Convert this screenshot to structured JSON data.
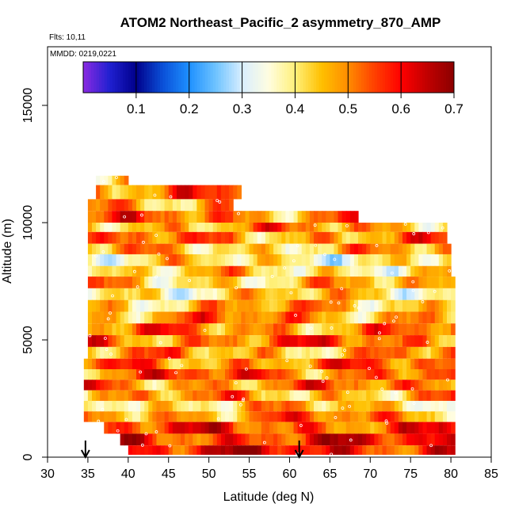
{
  "chart_data": {
    "type": "heatmap",
    "title": "ATOM2 Northeast_Pacific_2 asymmetry_870_AMP",
    "subtitle_flights": "Flts: 10,11",
    "subtitle_dates": "MMDD: 0219,0221",
    "xlabel": "Latitude (deg N)",
    "ylabel": "Altitude (m)",
    "xlim": [
      30,
      85
    ],
    "ylim": [
      0,
      17500
    ],
    "x_ticks": [
      30,
      35,
      40,
      45,
      50,
      55,
      60,
      65,
      70,
      75,
      80,
      85
    ],
    "y_ticks": [
      0,
      5000,
      10000,
      15000
    ],
    "colorbar": {
      "min": 0.0,
      "max": 0.7,
      "ticks": [
        0.1,
        0.2,
        0.3,
        0.4,
        0.5,
        0.6,
        0.7
      ],
      "colors": [
        "#8a2be2",
        "#2020d0",
        "#00008b",
        "#0a50d8",
        "#1e90ff",
        "#6ec3ff",
        "#d8eeff",
        "#fffde0",
        "#fff07a",
        "#ffc000",
        "#ff8c00",
        "#ff4000",
        "#ff0000",
        "#c00000",
        "#8b0000"
      ]
    },
    "arrows_latitude": [
      34.7,
      61.2
    ],
    "rows": [
      {
        "alt_bottom": 11600,
        "alt_top": 12000,
        "lat_start": 36.0,
        "lat_end": 40.0,
        "mean": 0.46
      },
      {
        "alt_bottom": 11000,
        "alt_top": 11600,
        "lat_start": 36.0,
        "lat_end": 54.0,
        "mean": 0.52
      },
      {
        "alt_bottom": 10500,
        "alt_top": 11000,
        "lat_start": 35.0,
        "lat_end": 53.0,
        "mean": 0.49
      },
      {
        "alt_bottom": 10000,
        "alt_top": 10500,
        "lat_start": 35.0,
        "lat_end": 68.5,
        "mean": 0.51
      },
      {
        "alt_bottom": 9600,
        "alt_top": 10000,
        "lat_start": 35.0,
        "lat_end": 79.5,
        "mean": 0.48
      },
      {
        "alt_bottom": 9100,
        "alt_top": 9600,
        "lat_start": 35.0,
        "lat_end": 79.5,
        "mean": 0.49
      },
      {
        "alt_bottom": 8650,
        "alt_top": 9100,
        "lat_start": 35.0,
        "lat_end": 80.0,
        "mean": 0.45
      },
      {
        "alt_bottom": 8150,
        "alt_top": 8650,
        "lat_start": 35.0,
        "lat_end": 80.0,
        "mean": 0.4
      },
      {
        "alt_bottom": 7700,
        "alt_top": 8150,
        "lat_start": 35.0,
        "lat_end": 80.0,
        "mean": 0.42
      },
      {
        "alt_bottom": 7200,
        "alt_top": 7700,
        "lat_start": 35.0,
        "lat_end": 80.5,
        "mean": 0.44
      },
      {
        "alt_bottom": 6700,
        "alt_top": 7200,
        "lat_start": 35.0,
        "lat_end": 80.5,
        "mean": 0.42
      },
      {
        "alt_bottom": 6200,
        "alt_top": 6700,
        "lat_start": 35.0,
        "lat_end": 80.5,
        "mean": 0.46
      },
      {
        "alt_bottom": 5700,
        "alt_top": 6200,
        "lat_start": 35.0,
        "lat_end": 80.5,
        "mean": 0.49
      },
      {
        "alt_bottom": 5200,
        "alt_top": 5700,
        "lat_start": 35.0,
        "lat_end": 80.5,
        "mean": 0.5
      },
      {
        "alt_bottom": 4700,
        "alt_top": 5200,
        "lat_start": 35.0,
        "lat_end": 80.5,
        "mean": 0.52
      },
      {
        "alt_bottom": 4200,
        "alt_top": 4700,
        "lat_start": 35.0,
        "lat_end": 80.5,
        "mean": 0.47
      },
      {
        "alt_bottom": 3750,
        "alt_top": 4200,
        "lat_start": 34.5,
        "lat_end": 80.5,
        "mean": 0.51
      },
      {
        "alt_bottom": 3300,
        "alt_top": 3750,
        "lat_start": 34.5,
        "lat_end": 80.5,
        "mean": 0.53
      },
      {
        "alt_bottom": 2850,
        "alt_top": 3300,
        "lat_start": 34.5,
        "lat_end": 80.5,
        "mean": 0.5
      },
      {
        "alt_bottom": 2400,
        "alt_top": 2850,
        "lat_start": 34.5,
        "lat_end": 80.5,
        "mean": 0.47
      },
      {
        "alt_bottom": 1950,
        "alt_top": 2400,
        "lat_start": 34.5,
        "lat_end": 80.5,
        "mean": 0.44
      },
      {
        "alt_bottom": 1500,
        "alt_top": 1950,
        "lat_start": 34.5,
        "lat_end": 80.5,
        "mean": 0.5
      },
      {
        "alt_bottom": 1000,
        "alt_top": 1500,
        "lat_start": 37.0,
        "lat_end": 80.5,
        "mean": 0.55
      },
      {
        "alt_bottom": 500,
        "alt_top": 1000,
        "lat_start": 39.0,
        "lat_end": 80.5,
        "mean": 0.58
      },
      {
        "alt_bottom": 100,
        "alt_top": 500,
        "lat_start": 40.0,
        "lat_end": 80.5,
        "mean": 0.6
      }
    ]
  }
}
